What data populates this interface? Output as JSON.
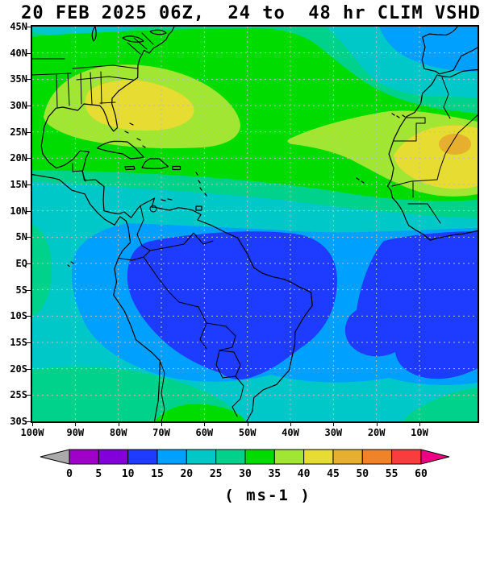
{
  "title": "20 FEB 2025 06Z,  24 to  48 hr CLIM VSHD",
  "map": {
    "lat_labels": [
      "45N",
      "40N",
      "35N",
      "30N",
      "25N",
      "20N",
      "15N",
      "10N",
      "5N",
      "EQ",
      "5S",
      "10S",
      "15S",
      "20S",
      "25S",
      "30S"
    ],
    "lon_labels": [
      "100W",
      "90W",
      "80W",
      "70W",
      "60W",
      "50W",
      "40W",
      "30W",
      "20W",
      "10W"
    ],
    "frame_color": "#000000",
    "grid_color": "#bdbdbd",
    "coast_color": "#000000"
  },
  "palette": {
    "gray": "#aaaaaa",
    "c0": "#a000c8",
    "c5": "#8200dc",
    "c10": "#1e3cff",
    "c15": "#00a0ff",
    "c20": "#00c8c8",
    "c25": "#00d28c",
    "c30": "#00dc00",
    "c35": "#a0e632",
    "c40": "#e6dc32",
    "c45": "#e6af2d",
    "c50": "#f08228",
    "c55": "#fa3c3c",
    "c60": "#f00082"
  },
  "colorbar": {
    "levels": [
      "0",
      "5",
      "10",
      "15",
      "20",
      "25",
      "30",
      "35",
      "40",
      "45",
      "50",
      "55",
      "60"
    ],
    "segment_colors": [
      "#a000c8",
      "#8200dc",
      "#1e3cff",
      "#00a0ff",
      "#00c8c8",
      "#00d28c",
      "#00dc00",
      "#a0e632",
      "#e6dc32",
      "#e6af2d",
      "#f08228",
      "#fa3c3c"
    ],
    "below_min_color": "#aaaaaa",
    "above_max_color": "#f00082",
    "unit_label": "( ms-1 )"
  },
  "chart_data": {
    "type": "heatmap",
    "title": "20 FEB 2025 06Z,  24 to  48 hr CLIM VSHD",
    "units": "ms-1",
    "levels": [
      0,
      5,
      10,
      15,
      20,
      25,
      30,
      35,
      40,
      45,
      50,
      55,
      60
    ],
    "level_colors": [
      "#a000c8",
      "#8200dc",
      "#1e3cff",
      "#00a0ff",
      "#00c8c8",
      "#00d28c",
      "#00dc00",
      "#a0e632",
      "#e6dc32",
      "#e6af2d",
      "#f08228",
      "#fa3c3c"
    ],
    "lat_ticks": [
      "45N",
      "40N",
      "35N",
      "30N",
      "25N",
      "20N",
      "15N",
      "10N",
      "5N",
      "EQ",
      "5S",
      "10S",
      "15S",
      "20S",
      "25S",
      "30S"
    ],
    "lon_ticks": [
      "100W",
      "90W",
      "80W",
      "70W",
      "60W",
      "50W",
      "40W",
      "30W",
      "20W",
      "10W"
    ],
    "grid": true,
    "legend_position": "bottom-horizontal-colorbar",
    "regions": [
      {
        "region": "Band 40-45N from US/Great Lakes across Atlantic",
        "value_ms": "20-30"
      },
      {
        "region": "US East Coast and subtropical west Atlantic 25-38N",
        "value_ms": "35-40"
      },
      {
        "region": "Southeast US coast core (Georgia/Carolinas, ~24-34N, 62-88W)",
        "value_ms": "40-45"
      },
      {
        "region": "Northeast corner / Iberia and NE Atlantic (36-45N east of 45W)",
        "value_ms": "15-20"
      },
      {
        "region": "Caribbean / central Atlantic band 17-25N",
        "value_ms": "30-35"
      },
      {
        "region": "Mid-Atlantic patch ~19-25N between 40W and Africa",
        "value_ms": "35-40"
      },
      {
        "region": "West Africa Mauritania/Mali wedge 13-27N",
        "value_ms": "40-45"
      },
      {
        "region": "West Africa core near 24N 2W",
        "value_ms": "45-50"
      },
      {
        "region": "Tropical band 8-13N across basin",
        "value_ms": "20-30"
      },
      {
        "region": "Amazon basin blob ~6N-21S, 29-78W",
        "value_ms": "10-15"
      },
      {
        "region": "Gulf of Guinea / SE Atlantic ~5N-21S east of 25W",
        "value_ms": "10-15"
      },
      {
        "region": "Ring around both low cores over tropical S.America/S.Atlantic",
        "value_ms": "15-20"
      },
      {
        "region": "Far-east Pacific strip at left edge near equator",
        "value_ms": "25-30"
      },
      {
        "region": "Southern band 22-30S",
        "value_ms": "20-30"
      },
      {
        "region": "Bottom edge 27-30S, 57-72W",
        "value_ms": "30-35"
      },
      {
        "region": "Bottom-right corner 26-30S near 0-10W",
        "value_ms": "25-30"
      }
    ]
  }
}
